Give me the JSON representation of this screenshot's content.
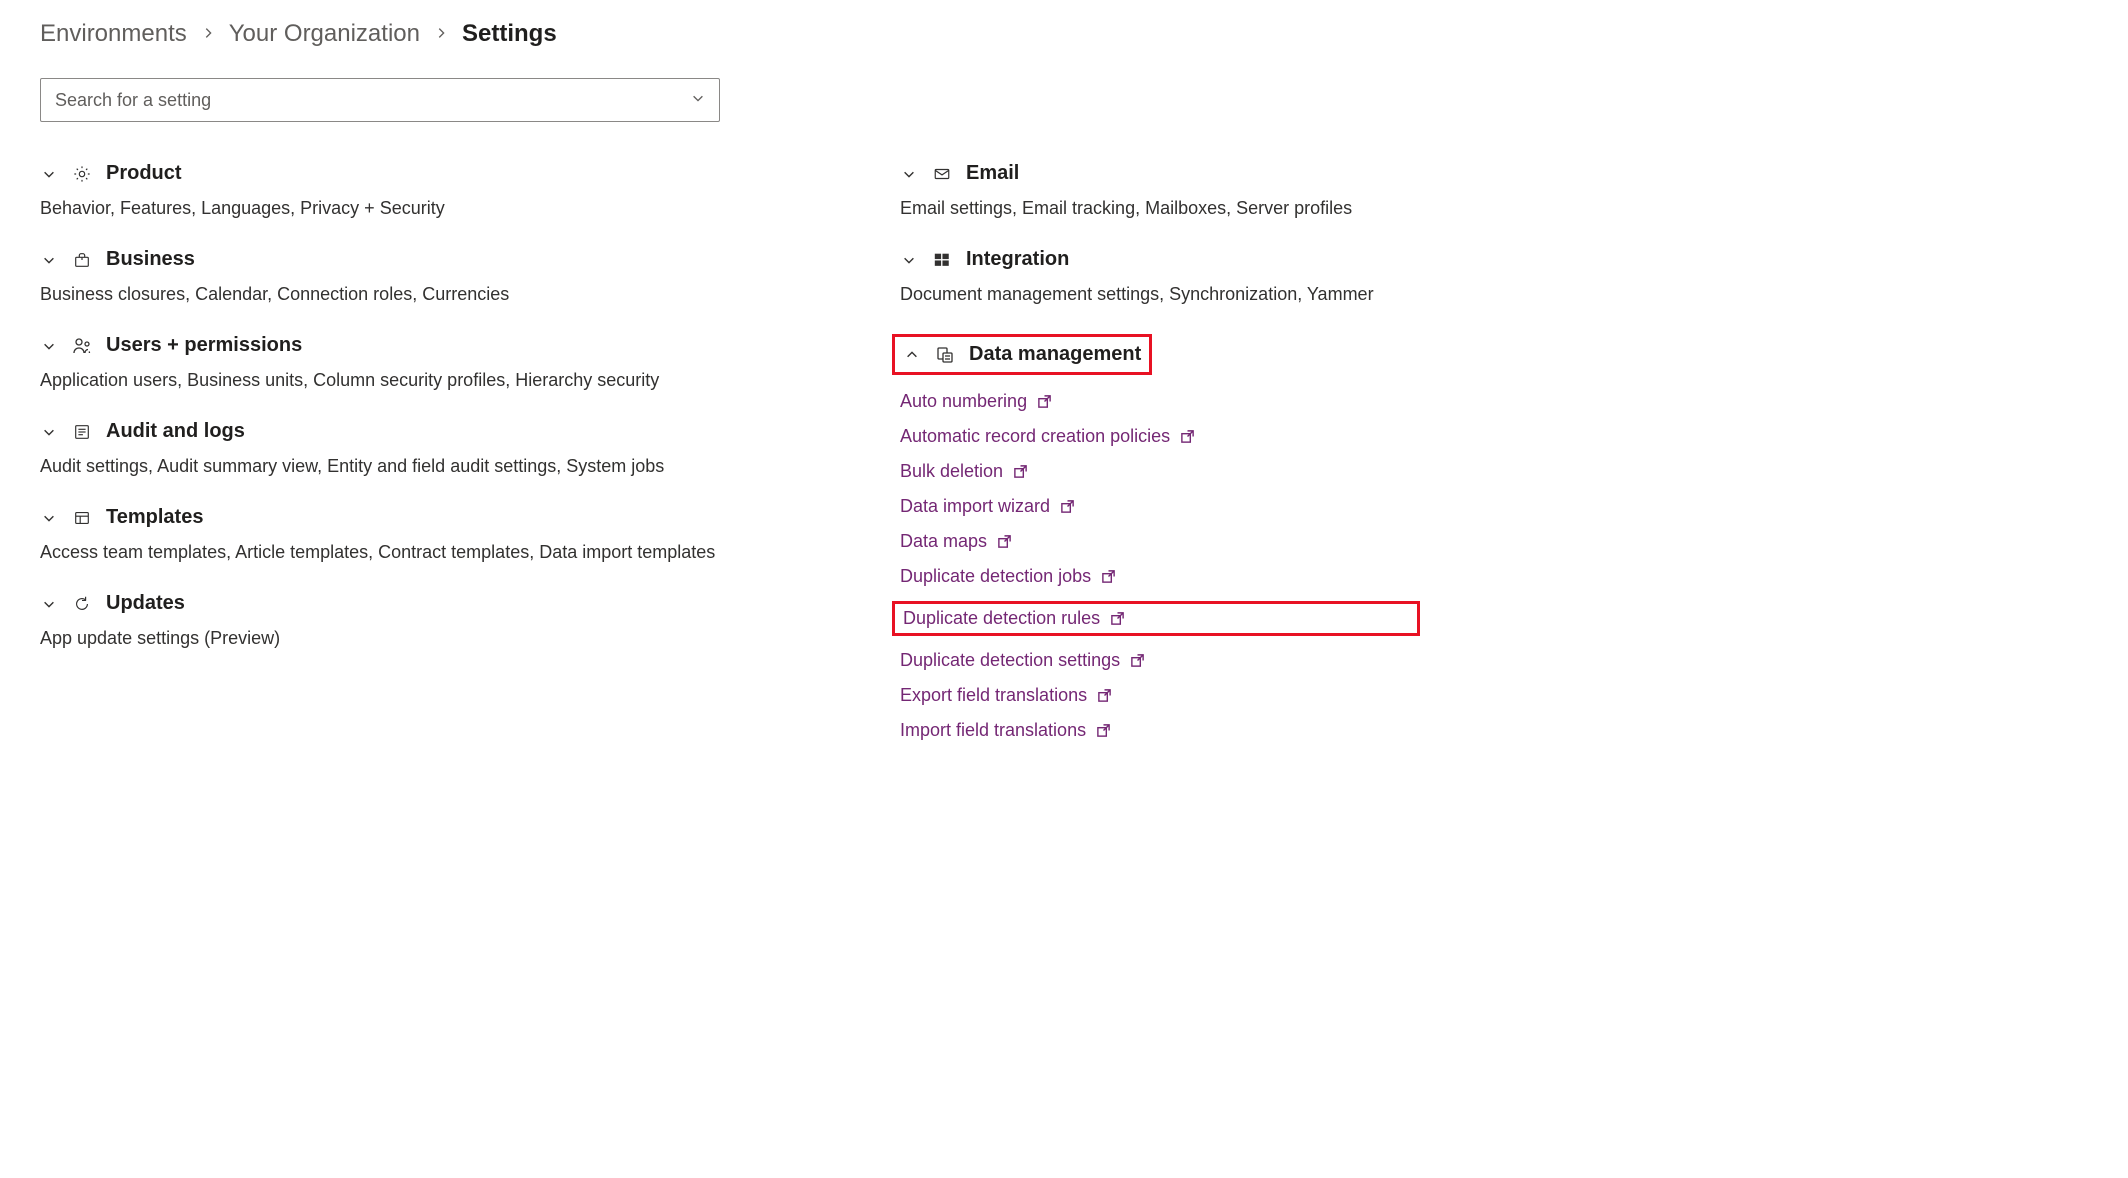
{
  "breadcrumb": {
    "items": [
      "Environments",
      "Your Organization",
      "Settings"
    ],
    "active_index": 2
  },
  "search": {
    "placeholder": "Search for a setting"
  },
  "colors": {
    "link_color": "#742774",
    "highlight_border": "#e81123",
    "text_primary": "#201f1e",
    "text_secondary": "#605e5c",
    "border_gray": "#8a8886",
    "background": "#ffffff"
  },
  "left_sections": [
    {
      "id": "product",
      "icon": "gear-icon",
      "title": "Product",
      "expanded": false,
      "desc": "Behavior, Features, Languages, Privacy + Security"
    },
    {
      "id": "business",
      "icon": "briefcase-icon",
      "title": "Business",
      "expanded": false,
      "desc": "Business closures, Calendar, Connection roles, Currencies"
    },
    {
      "id": "users",
      "icon": "people-icon",
      "title": "Users + permissions",
      "expanded": false,
      "desc": "Application users, Business units, Column security profiles, Hierarchy security"
    },
    {
      "id": "audit",
      "icon": "list-icon",
      "title": "Audit and logs",
      "expanded": false,
      "desc": "Audit settings, Audit summary view, Entity and field audit settings, System jobs"
    },
    {
      "id": "templates",
      "icon": "templates-icon",
      "title": "Templates",
      "expanded": false,
      "desc": "Access team templates, Article templates, Contract templates, Data import templates"
    },
    {
      "id": "updates",
      "icon": "refresh-icon",
      "title": "Updates",
      "expanded": false,
      "desc": "App update settings (Preview)"
    }
  ],
  "right_sections": [
    {
      "id": "email",
      "icon": "mail-icon",
      "title": "Email",
      "expanded": false,
      "highlighted": false,
      "desc": "Email settings, Email tracking, Mailboxes, Server profiles"
    },
    {
      "id": "integration",
      "icon": "windows-icon",
      "title": "Integration",
      "expanded": false,
      "highlighted": false,
      "desc": "Document management settings, Synchronization, Yammer"
    },
    {
      "id": "data-management",
      "icon": "database-icon",
      "title": "Data management",
      "expanded": true,
      "highlighted": true,
      "links": [
        {
          "label": "Auto numbering",
          "highlighted": false
        },
        {
          "label": "Automatic record creation policies",
          "highlighted": false
        },
        {
          "label": "Bulk deletion",
          "highlighted": false
        },
        {
          "label": "Data import wizard",
          "highlighted": false
        },
        {
          "label": "Data maps",
          "highlighted": false
        },
        {
          "label": "Duplicate detection jobs",
          "highlighted": false
        },
        {
          "label": "Duplicate detection rules",
          "highlighted": true
        },
        {
          "label": "Duplicate detection settings",
          "highlighted": false
        },
        {
          "label": "Export field translations",
          "highlighted": false
        },
        {
          "label": "Import field translations",
          "highlighted": false
        }
      ]
    }
  ]
}
